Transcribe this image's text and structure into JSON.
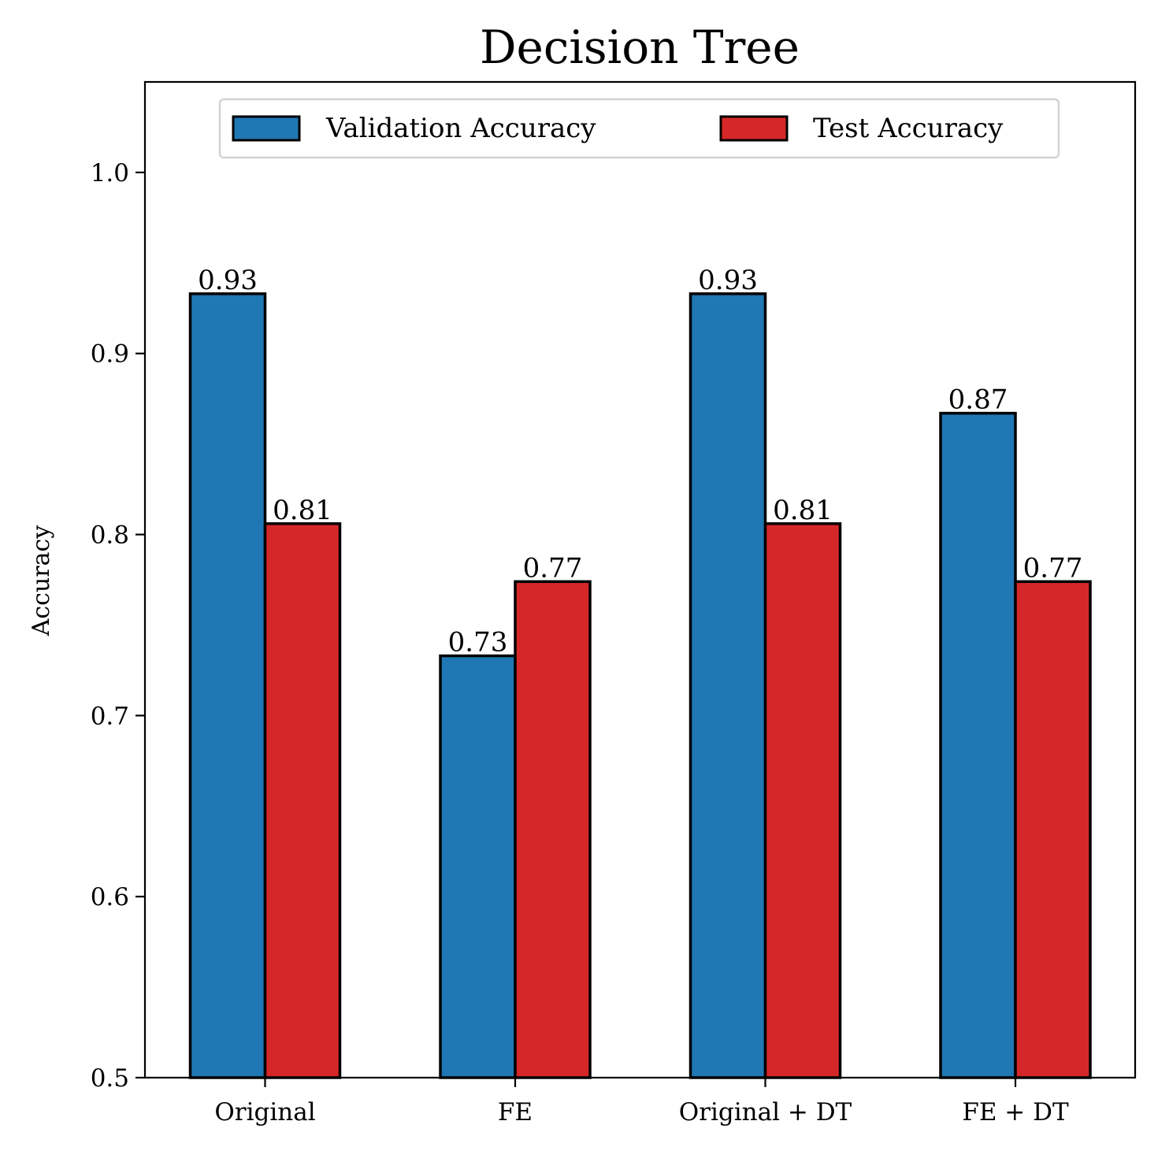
{
  "chart_data": {
    "type": "bar",
    "title": "Decision Tree",
    "xlabel": "",
    "ylabel": "Accuracy",
    "ylim": [
      0.5,
      1.05
    ],
    "yticks": [
      "0.5",
      "0.6",
      "0.7",
      "0.8",
      "0.9",
      "1.0"
    ],
    "categories": [
      "Original",
      "FE",
      "Original + DT",
      "FE + DT"
    ],
    "series": [
      {
        "name": "Validation Accuracy",
        "color": "#1f77b4",
        "values": [
          0.933,
          0.733,
          0.933,
          0.867
        ],
        "labels": [
          "0.93",
          "0.73",
          "0.93",
          "0.87"
        ]
      },
      {
        "name": "Test Accuracy",
        "color": "#d62728",
        "values": [
          0.806,
          0.774,
          0.806,
          0.774
        ],
        "labels": [
          "0.81",
          "0.77",
          "0.81",
          "0.77"
        ]
      }
    ],
    "legend_position": "top-center",
    "grid": false
  }
}
